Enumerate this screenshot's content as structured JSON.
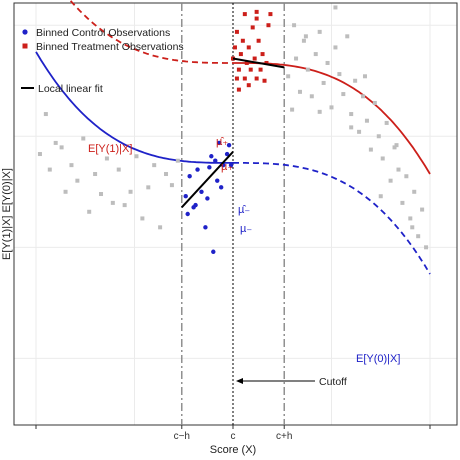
{
  "chart_data": {
    "type": "scatter",
    "title": "",
    "xlabel": "Score (X)",
    "ylabel": "E[Y(1)|X]  E[Y(0)|X]",
    "xlim": [
      -1.0,
      1.0
    ],
    "ylim": [
      -0.55,
      1.35
    ],
    "grid": true,
    "legend_position": "top-left",
    "legend": {
      "control": "Binned Control Observations",
      "treatment": "Binned Treatment Observations",
      "fit": "Local linear fit"
    },
    "x_ticks": [
      {
        "x": -0.26,
        "label": "c−h"
      },
      {
        "x": 0.0,
        "label": "c"
      },
      {
        "x": 0.26,
        "label": "c+h"
      }
    ],
    "annotations": {
      "ey1": "E[Y(1)|X]",
      "ey0": "E[Y(0)|X]",
      "mu_plus_hat": "µ̂₊",
      "mu_plus": "µ₊",
      "mu_minus_hat": "µ̂₋",
      "mu_minus": "µ₋",
      "cutoff": "Cutoff"
    },
    "colors": {
      "control": "#1f22c8",
      "treatment": "#cc1f1a",
      "background_points": "#bdbdbd",
      "fit": "#000000",
      "grid": "#ebebeb"
    },
    "series": [
      {
        "name": "Binned Control Observations",
        "x": [
          -0.24,
          -0.23,
          -0.22,
          -0.2,
          -0.19,
          -0.18,
          -0.16,
          -0.14,
          -0.13,
          -0.12,
          -0.11,
          -0.1,
          -0.09,
          -0.08,
          -0.07,
          -0.06,
          -0.05,
          -0.03,
          -0.02,
          -0.01
        ],
        "y": [
          0.48,
          0.4,
          0.57,
          0.43,
          0.44,
          0.6,
          0.5,
          0.34,
          0.47,
          0.61,
          0.66,
          0.23,
          0.64,
          0.55,
          0.72,
          0.52,
          0.62,
          0.67,
          0.71,
          0.62
        ]
      },
      {
        "name": "Binned Treatment Observations",
        "x": [
          0.0,
          0.01,
          0.02,
          0.02,
          0.03,
          0.04,
          0.05,
          0.06,
          0.07,
          0.08,
          0.09,
          0.1,
          0.11,
          0.12,
          0.12,
          0.13,
          0.14,
          0.15,
          0.16,
          0.17,
          0.18,
          0.19,
          0.03,
          0.06,
          0.08,
          0.12
        ],
        "y": [
          1.1,
          1.15,
          1.01,
          1.22,
          1.05,
          1.12,
          1.18,
          1.01,
          1.08,
          1.15,
          1.05,
          1.24,
          1.1,
          1.28,
          1.01,
          1.18,
          1.05,
          1.12,
          1.0,
          1.08,
          1.25,
          1.3,
          0.96,
          1.3,
          0.98,
          1.31
        ]
      },
      {
        "name": "",
        "x": [
          -0.98,
          -0.95,
          -0.93,
          -0.9,
          -0.87,
          -0.85,
          -0.82,
          -0.79,
          -0.76,
          -0.73,
          -0.7,
          -0.67,
          -0.64,
          -0.61,
          -0.58,
          -0.55,
          -0.52,
          -0.49,
          -0.46,
          -0.43,
          -0.4,
          -0.37,
          -0.34,
          -0.31,
          -0.28,
          0.28,
          0.3,
          0.32,
          0.34,
          0.36,
          0.38,
          0.4,
          0.42,
          0.44,
          0.46,
          0.48,
          0.5,
          0.52,
          0.54,
          0.56,
          0.58,
          0.6,
          0.62,
          0.64,
          0.66,
          0.68,
          0.7,
          0.72,
          0.74,
          0.76,
          0.78,
          0.8,
          0.82,
          0.84,
          0.86,
          0.88,
          0.9,
          0.92,
          0.94,
          0.96,
          0.98,
          0.31,
          0.37,
          0.44,
          0.52,
          0.6,
          0.67,
          0.75,
          0.83,
          0.91
        ],
        "y": [
          0.67,
          0.85,
          0.6,
          0.72,
          0.7,
          0.5,
          0.62,
          0.55,
          0.74,
          0.41,
          0.58,
          0.49,
          0.65,
          0.45,
          0.6,
          0.44,
          0.5,
          0.66,
          0.38,
          0.52,
          0.62,
          0.34,
          0.58,
          0.53,
          0.64,
          1.02,
          0.87,
          1.1,
          0.95,
          1.18,
          1.05,
          0.93,
          1.12,
          1.22,
          0.99,
          1.08,
          0.88,
          1.15,
          1.03,
          0.94,
          1.2,
          0.85,
          1.0,
          0.77,
          0.93,
          0.82,
          0.69,
          0.9,
          0.75,
          0.65,
          0.81,
          0.55,
          0.7,
          0.6,
          0.45,
          0.57,
          0.38,
          0.5,
          0.3,
          0.42,
          0.25,
          1.25,
          1.2,
          0.86,
          1.33,
          0.79,
          1.02,
          0.48,
          0.71,
          0.34
        ]
      }
    ],
    "curves": [
      {
        "name": "E[Y(1)|X] observed",
        "style": "solid",
        "color": "#cc1f1a",
        "x_range": [
          0.0,
          1.0
        ],
        "coef": [
          1.08,
          0.0,
          0.0,
          -0.5
        ]
      },
      {
        "name": "E[Y(1)|X] unobserved",
        "style": "dashed",
        "color": "#cc1f1a",
        "x_range": [
          -1.0,
          0.0
        ],
        "coef": [
          1.08,
          0.0,
          0.0,
          -0.5
        ]
      },
      {
        "name": "E[Y(0)|X] observed",
        "style": "solid",
        "color": "#1f22c8",
        "x_range": [
          -1.0,
          0.0
        ],
        "coef": [
          0.63,
          0.0,
          0.0,
          -0.5
        ]
      },
      {
        "name": "E[Y(0)|X] unobserved",
        "style": "dashed",
        "color": "#1f22c8",
        "x_range": [
          0.0,
          1.0
        ],
        "coef": [
          0.63,
          0.0,
          0.0,
          -0.5
        ]
      }
    ],
    "fits": [
      {
        "x": [
          -0.26,
          0.0
        ],
        "y": [
          0.43,
          0.68
        ]
      },
      {
        "x": [
          0.0,
          0.26
        ],
        "y": [
          1.1,
          1.06
        ]
      }
    ]
  }
}
